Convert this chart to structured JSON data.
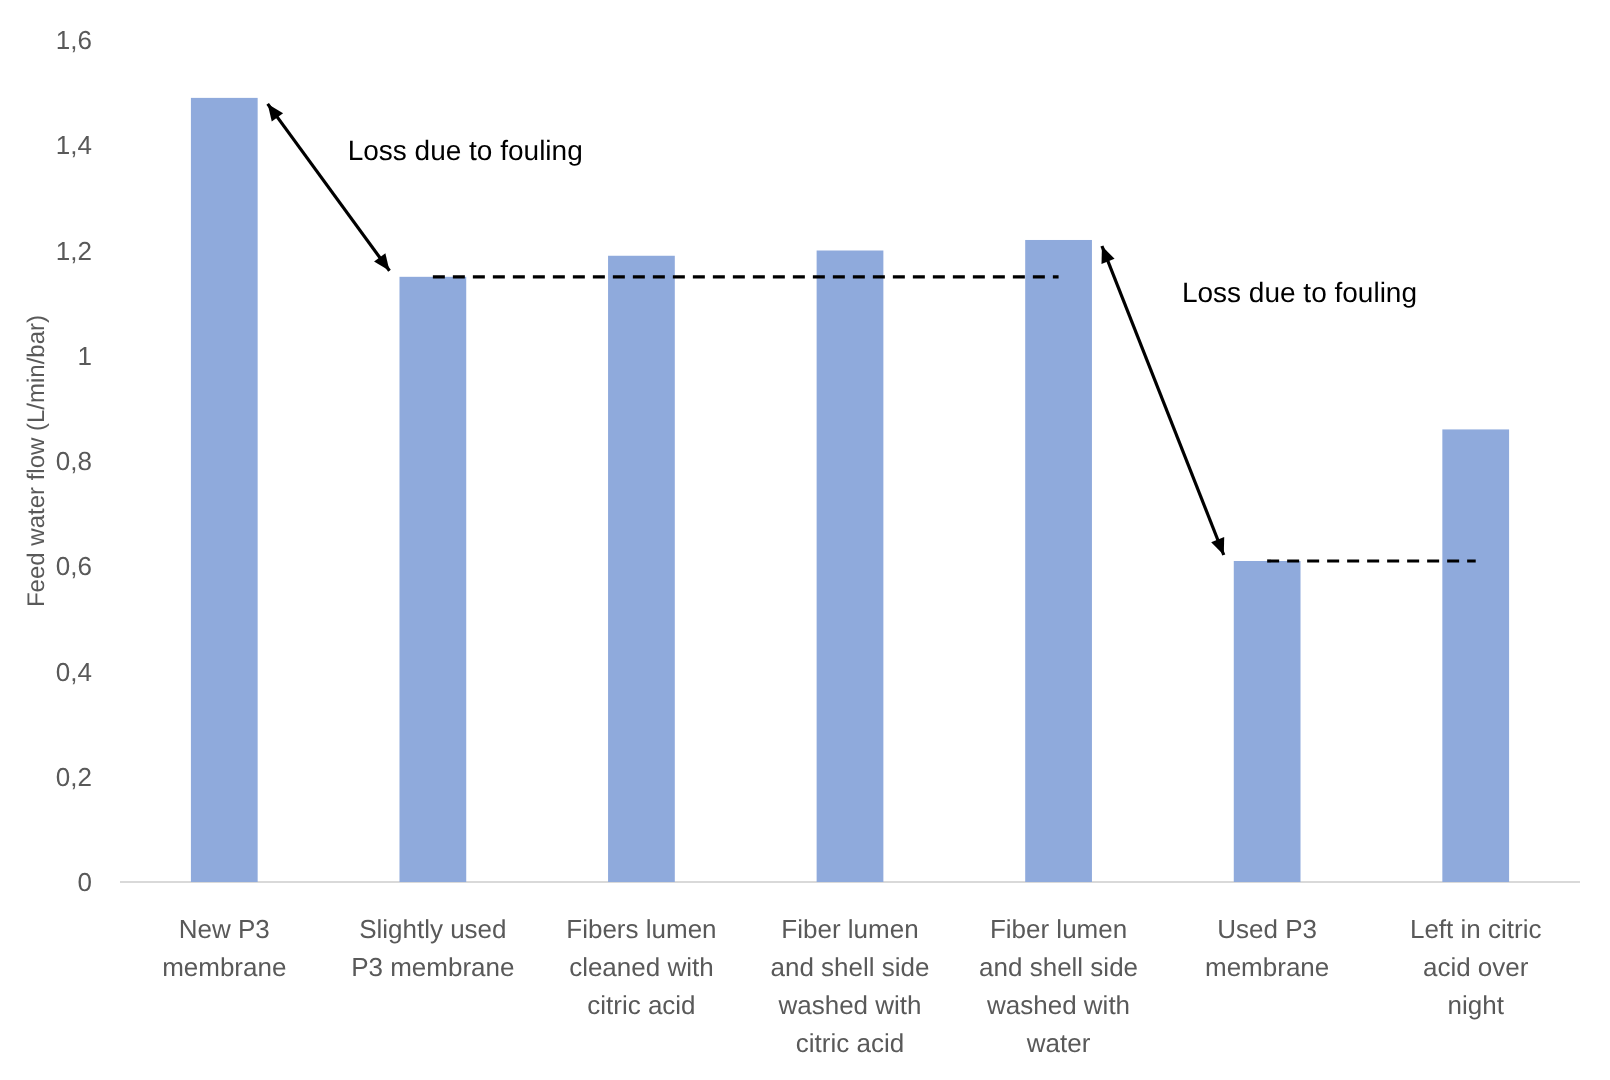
{
  "chart_data": {
    "type": "bar",
    "ylabel": "Feed water flow (L/min/bar)",
    "categories": [
      "New P3 membrane",
      "Slightly used P3 membrane",
      "Fibers lumen cleaned with citric acid",
      "Fiber lumen and shell side washed with citric acid",
      "Fiber lumen and shell side washed with water",
      "Used P3 membrane",
      "Left in citric acid over night"
    ],
    "series": [
      {
        "color": "#8faadc",
        "values": [
          1.49,
          1.15,
          1.19,
          1.2,
          1.22,
          0.61,
          0.86
        ]
      },
      {
        "type": "line",
        "color": "#000000",
        "line_style": "dashed",
        "marker": "none",
        "values": [
          null,
          1.15,
          1.15,
          1.15,
          1.15,
          null,
          null
        ]
      },
      {
        "type": "line",
        "color": "#000000",
        "line_style": "dashed",
        "marker": "none",
        "values": [
          null,
          null,
          null,
          null,
          null,
          0.61,
          0.61
        ]
      }
    ],
    "ylim": [
      0,
      1.6
    ],
    "yticks": [
      {
        "value": 0,
        "label": "0"
      },
      {
        "value": 0.2,
        "label": "0,2"
      },
      {
        "value": 0.4,
        "label": "0,4"
      },
      {
        "value": 0.6,
        "label": "0,6"
      },
      {
        "value": 0.8,
        "label": "0,8"
      },
      {
        "value": 1,
        "label": "1"
      },
      {
        "value": 1.2,
        "label": "1,2"
      },
      {
        "value": 1.4,
        "label": "1,4"
      },
      {
        "value": 1.6,
        "label": "1,6"
      }
    ],
    "grid": false,
    "annotations": [
      "Loss due to fouling",
      "Loss due to fouling"
    ]
  }
}
